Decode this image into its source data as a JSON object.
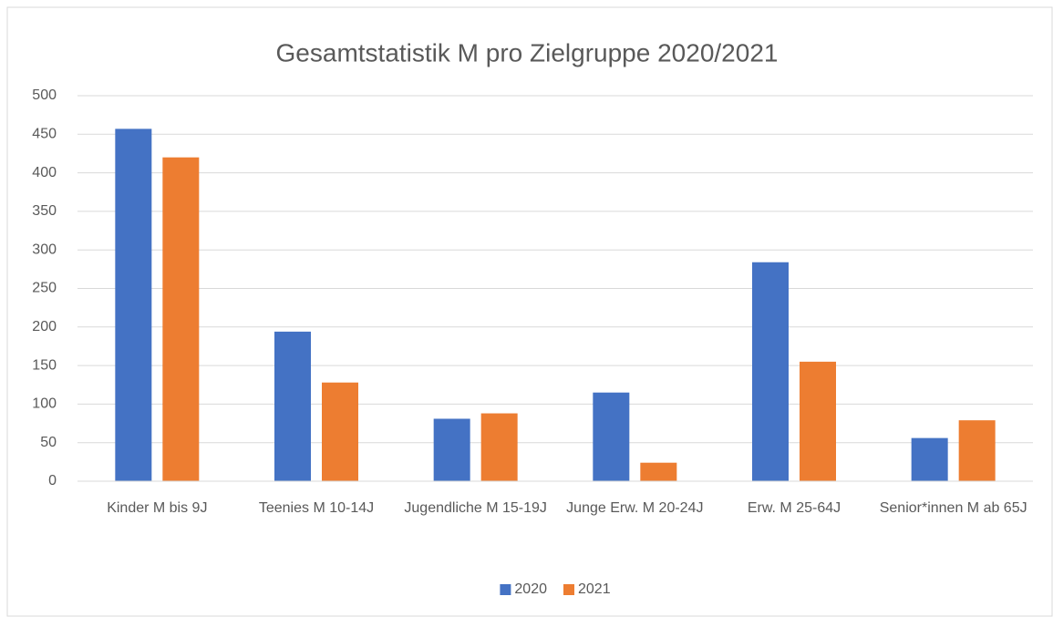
{
  "chart_data": {
    "type": "bar",
    "title": "Gesamtstatistik M pro Zielgruppe 2020/2021",
    "categories": [
      "Kinder M bis 9J",
      "Teenies M 10-14J",
      "Jugendliche M 15-19J",
      "Junge Erw. M 20-24J",
      "Erw. M 25-64J",
      "Senior*innen M ab 65J"
    ],
    "series": [
      {
        "name": "2020",
        "color": "#4472c4",
        "values": [
          457,
          194,
          81,
          115,
          284,
          56
        ]
      },
      {
        "name": "2021",
        "color": "#ed7d31",
        "values": [
          420,
          128,
          88,
          24,
          155,
          79
        ]
      }
    ],
    "ylim": [
      0,
      500
    ],
    "yticks": [
      0,
      50,
      100,
      150,
      200,
      250,
      300,
      350,
      400,
      450,
      500
    ],
    "grid": true,
    "legend": "bottom"
  }
}
